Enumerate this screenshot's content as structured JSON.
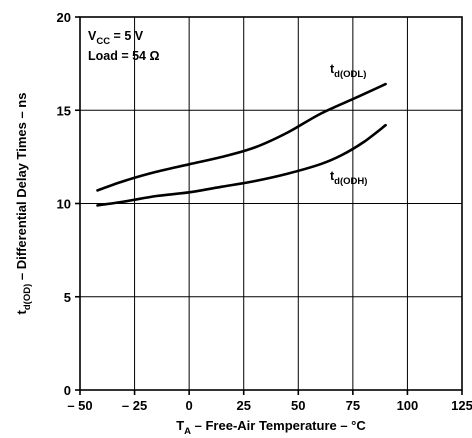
{
  "chart_data": {
    "type": "line",
    "xlabel": {
      "main": "T",
      "sub": "A",
      "rest": " – Free-Air Temperature – °C"
    },
    "ylabel": {
      "main": "t",
      "sub": "d(OD)",
      "rest": " – Differential Delay Times – ns"
    },
    "xlim": [
      -50,
      125
    ],
    "ylim": [
      0,
      20
    ],
    "xticks": [
      -50,
      -25,
      0,
      25,
      50,
      75,
      100,
      125
    ],
    "xtick_labels": [
      "– 50",
      "– 25",
      "0",
      "25",
      "50",
      "75",
      "100",
      "125"
    ],
    "yticks": [
      0,
      5,
      10,
      15,
      20
    ],
    "ytick_labels": [
      "0",
      "5",
      "10",
      "15",
      "20"
    ],
    "grid": true,
    "conditions": [
      {
        "main": "V",
        "sub": "CC",
        "rest": " = 5 V"
      },
      {
        "main": "Load = 54 Ω",
        "sub": "",
        "rest": ""
      }
    ],
    "series": [
      {
        "name": "ODL",
        "label_main": "t",
        "label_sub": "d(ODL)",
        "x": [
          -42,
          -30,
          -15,
          0,
          15,
          30,
          45,
          60,
          75,
          90
        ],
        "y": [
          10.7,
          11.2,
          11.7,
          12.1,
          12.5,
          13.0,
          13.8,
          14.8,
          15.6,
          16.4
        ]
      },
      {
        "name": "ODH",
        "label_main": "t",
        "label_sub": "d(ODH)",
        "x": [
          -42,
          -30,
          -15,
          0,
          15,
          30,
          45,
          60,
          70,
          80,
          90
        ],
        "y": [
          9.9,
          10.1,
          10.4,
          10.6,
          10.9,
          11.2,
          11.6,
          12.1,
          12.6,
          13.3,
          14.2
        ]
      }
    ]
  }
}
